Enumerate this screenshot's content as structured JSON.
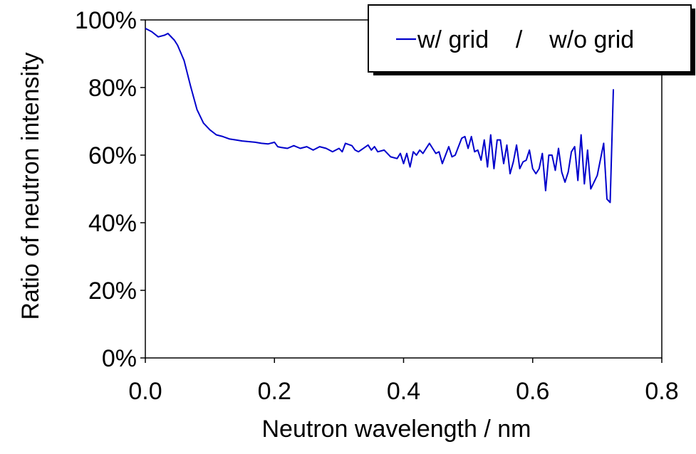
{
  "chart_data": {
    "type": "line",
    "title": "",
    "xlabel": "Neutron wavelength  / nm",
    "ylabel": "Ratio of neutron intensity",
    "xlim": [
      0,
      0.8
    ],
    "ylim": [
      0,
      100
    ],
    "x_ticks": [
      "0.0",
      "0.2",
      "0.4",
      "0.6",
      "0.8"
    ],
    "y_ticks": [
      "0%",
      "20%",
      "40%",
      "60%",
      "80%",
      "100%"
    ],
    "grid": false,
    "legend": {
      "placement": "top-right",
      "entries": [
        "w/ grid    /    w/o grid"
      ]
    },
    "series": [
      {
        "name": "w/ grid    /    w/o grid",
        "color": "#0000cc",
        "points": [
          [
            0.0,
            97.5
          ],
          [
            0.01,
            96.5
          ],
          [
            0.02,
            95.0
          ],
          [
            0.03,
            95.5
          ],
          [
            0.035,
            96.0
          ],
          [
            0.045,
            94.0
          ],
          [
            0.05,
            92.5
          ],
          [
            0.06,
            88.0
          ],
          [
            0.07,
            80.5
          ],
          [
            0.08,
            73.5
          ],
          [
            0.09,
            69.5
          ],
          [
            0.1,
            67.5
          ],
          [
            0.11,
            66.0
          ],
          [
            0.12,
            65.5
          ],
          [
            0.13,
            64.8
          ],
          [
            0.14,
            64.5
          ],
          [
            0.15,
            64.2
          ],
          [
            0.16,
            64.0
          ],
          [
            0.17,
            63.8
          ],
          [
            0.18,
            63.5
          ],
          [
            0.19,
            63.3
          ],
          [
            0.2,
            63.8
          ],
          [
            0.205,
            62.5
          ],
          [
            0.21,
            62.3
          ],
          [
            0.22,
            62.0
          ],
          [
            0.23,
            62.8
          ],
          [
            0.24,
            62.0
          ],
          [
            0.25,
            62.5
          ],
          [
            0.26,
            61.5
          ],
          [
            0.27,
            62.5
          ],
          [
            0.28,
            62.0
          ],
          [
            0.29,
            61.0
          ],
          [
            0.3,
            62.0
          ],
          [
            0.305,
            61.0
          ],
          [
            0.31,
            63.5
          ],
          [
            0.32,
            62.8
          ],
          [
            0.325,
            61.5
          ],
          [
            0.33,
            61.0
          ],
          [
            0.34,
            62.3
          ],
          [
            0.345,
            63.0
          ],
          [
            0.35,
            61.5
          ],
          [
            0.355,
            62.5
          ],
          [
            0.36,
            61.0
          ],
          [
            0.37,
            61.5
          ],
          [
            0.38,
            59.5
          ],
          [
            0.39,
            59.0
          ],
          [
            0.395,
            60.5
          ],
          [
            0.4,
            57.5
          ],
          [
            0.405,
            60.5
          ],
          [
            0.41,
            56.5
          ],
          [
            0.415,
            61.0
          ],
          [
            0.42,
            60.0
          ],
          [
            0.425,
            61.5
          ],
          [
            0.43,
            60.5
          ],
          [
            0.435,
            62.0
          ],
          [
            0.44,
            63.5
          ],
          [
            0.45,
            60.5
          ],
          [
            0.455,
            61.0
          ],
          [
            0.46,
            57.5
          ],
          [
            0.47,
            62.5
          ],
          [
            0.475,
            59.5
          ],
          [
            0.48,
            60.0
          ],
          [
            0.49,
            65.0
          ],
          [
            0.495,
            65.5
          ],
          [
            0.5,
            62.0
          ],
          [
            0.505,
            65.5
          ],
          [
            0.51,
            61.0
          ],
          [
            0.515,
            61.5
          ],
          [
            0.52,
            58.5
          ],
          [
            0.525,
            64.5
          ],
          [
            0.53,
            56.5
          ],
          [
            0.535,
            66.0
          ],
          [
            0.54,
            56.0
          ],
          [
            0.545,
            64.5
          ],
          [
            0.55,
            64.5
          ],
          [
            0.555,
            57.5
          ],
          [
            0.56,
            63.0
          ],
          [
            0.565,
            54.5
          ],
          [
            0.57,
            58.0
          ],
          [
            0.575,
            63.0
          ],
          [
            0.58,
            56.0
          ],
          [
            0.585,
            58.0
          ],
          [
            0.59,
            58.5
          ],
          [
            0.595,
            61.5
          ],
          [
            0.6,
            56.0
          ],
          [
            0.605,
            54.5
          ],
          [
            0.61,
            56.0
          ],
          [
            0.615,
            60.5
          ],
          [
            0.62,
            49.5
          ],
          [
            0.625,
            60.0
          ],
          [
            0.63,
            60.0
          ],
          [
            0.635,
            55.5
          ],
          [
            0.64,
            62.0
          ],
          [
            0.645,
            55.0
          ],
          [
            0.65,
            52.0
          ],
          [
            0.655,
            55.0
          ],
          [
            0.66,
            61.0
          ],
          [
            0.665,
            62.5
          ],
          [
            0.67,
            52.5
          ],
          [
            0.675,
            66.0
          ],
          [
            0.68,
            51.5
          ],
          [
            0.685,
            61.5
          ],
          [
            0.69,
            50.0
          ],
          [
            0.7,
            54.0
          ],
          [
            0.71,
            63.5
          ],
          [
            0.715,
            47.0
          ],
          [
            0.72,
            46.0
          ],
          [
            0.725,
            79.5
          ]
        ]
      }
    ]
  }
}
